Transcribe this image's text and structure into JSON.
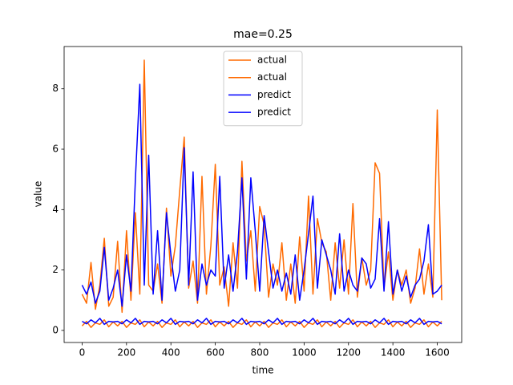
{
  "chart_data": {
    "type": "line",
    "title": "mae=0.25",
    "x_label": "time",
    "y_label": "value",
    "x": [
      0,
      20,
      40,
      60,
      80,
      100,
      120,
      140,
      160,
      180,
      200,
      220,
      240,
      260,
      280,
      300,
      320,
      340,
      360,
      380,
      400,
      420,
      440,
      460,
      480,
      500,
      520,
      540,
      560,
      580,
      600,
      620,
      640,
      660,
      680,
      700,
      720,
      740,
      760,
      780,
      800,
      820,
      840,
      860,
      880,
      900,
      920,
      940,
      960,
      980,
      1000,
      1020,
      1040,
      1060,
      1080,
      1100,
      1120,
      1140,
      1160,
      1180,
      1200,
      1220,
      1240,
      1260,
      1280,
      1300,
      1320,
      1340,
      1360,
      1380,
      1400,
      1420,
      1440,
      1460,
      1480,
      1500,
      1520,
      1540,
      1560,
      1580,
      1600,
      1620
    ],
    "series": [
      {
        "name": "actual",
        "color": "#ff6a00",
        "values": [
          1.2,
          0.9,
          2.25,
          0.7,
          1.5,
          3.05,
          0.8,
          1.1,
          2.95,
          0.6,
          3.3,
          1.0,
          3.9,
          1.2,
          8.95,
          1.5,
          1.3,
          2.2,
          0.9,
          4.05,
          1.8,
          2.8,
          4.65,
          6.4,
          1.4,
          2.3,
          0.9,
          5.1,
          1.2,
          2.8,
          5.5,
          1.5,
          2.1,
          0.8,
          2.9,
          1.4,
          5.6,
          2.3,
          3.3,
          1.3,
          4.1,
          3.5,
          1.1,
          2.2,
          1.5,
          2.9,
          1.0,
          2.2,
          0.9,
          3.1,
          1.3,
          4.45,
          1.2,
          3.7,
          2.9,
          2.6,
          1.0,
          2.9,
          1.4,
          3.0,
          1.2,
          4.2,
          1.1,
          2.4,
          1.5,
          2.0,
          5.55,
          5.2,
          1.4,
          2.6,
          1.0,
          2.0,
          1.5,
          2.0,
          0.9,
          1.4,
          2.7,
          1.2,
          2.2,
          1.1,
          7.3,
          1.0
        ]
      },
      {
        "name": "actual",
        "color": "#ff6a00",
        "values": [
          0.15,
          0.3,
          0.1,
          0.25,
          0.2,
          0.35,
          0.12,
          0.28,
          0.15,
          0.3,
          0.1,
          0.25,
          0.2,
          0.35,
          0.12,
          0.28,
          0.15,
          0.3,
          0.1,
          0.25,
          0.2,
          0.35,
          0.12,
          0.28,
          0.15,
          0.3,
          0.1,
          0.25,
          0.2,
          0.35,
          0.12,
          0.28,
          0.15,
          0.3,
          0.1,
          0.25,
          0.2,
          0.35,
          0.12,
          0.28,
          0.15,
          0.3,
          0.1,
          0.25,
          0.2,
          0.35,
          0.12,
          0.28,
          0.15,
          0.3,
          0.1,
          0.25,
          0.2,
          0.35,
          0.12,
          0.28,
          0.15,
          0.3,
          0.1,
          0.25,
          0.2,
          0.35,
          0.12,
          0.28,
          0.15,
          0.3,
          0.1,
          0.25,
          0.2,
          0.35,
          0.12,
          0.28,
          0.15,
          0.3,
          0.1,
          0.25,
          0.2,
          0.35,
          0.12,
          0.28,
          0.15,
          0.3
        ]
      },
      {
        "name": "predict",
        "color": "#0000ff",
        "values": [
          1.5,
          1.2,
          1.6,
          0.9,
          1.3,
          2.75,
          1.0,
          1.4,
          2.0,
          0.8,
          2.5,
          1.3,
          5.0,
          8.15,
          1.5,
          5.8,
          1.2,
          3.3,
          1.0,
          3.9,
          2.5,
          1.3,
          2.0,
          6.05,
          1.5,
          5.25,
          1.0,
          2.2,
          1.5,
          2.0,
          1.8,
          5.1,
          1.4,
          2.5,
          1.3,
          2.6,
          5.05,
          1.7,
          5.05,
          3.3,
          1.3,
          3.8,
          2.6,
          1.4,
          2.0,
          1.3,
          1.9,
          1.2,
          2.5,
          1.0,
          2.0,
          3.2,
          4.45,
          1.4,
          3.0,
          2.5,
          2.0,
          1.2,
          3.2,
          1.3,
          2.0,
          1.5,
          1.3,
          2.4,
          2.2,
          1.4,
          1.7,
          3.7,
          1.3,
          3.6,
          1.2,
          2.0,
          1.3,
          1.8,
          1.1,
          1.5,
          1.7,
          2.3,
          3.5,
          1.2,
          1.3,
          1.5
        ]
      },
      {
        "name": "predict",
        "color": "#0000ff",
        "values": [
          0.3,
          0.22,
          0.35,
          0.25,
          0.4,
          0.2,
          0.3,
          0.28,
          0.3,
          0.22,
          0.35,
          0.25,
          0.4,
          0.2,
          0.3,
          0.28,
          0.3,
          0.22,
          0.35,
          0.25,
          0.4,
          0.2,
          0.3,
          0.28,
          0.3,
          0.22,
          0.35,
          0.25,
          0.4,
          0.2,
          0.3,
          0.28,
          0.3,
          0.22,
          0.35,
          0.25,
          0.4,
          0.2,
          0.3,
          0.28,
          0.3,
          0.22,
          0.35,
          0.25,
          0.4,
          0.2,
          0.3,
          0.28,
          0.3,
          0.22,
          0.35,
          0.25,
          0.4,
          0.2,
          0.3,
          0.28,
          0.3,
          0.22,
          0.35,
          0.25,
          0.4,
          0.2,
          0.3,
          0.28,
          0.3,
          0.22,
          0.35,
          0.25,
          0.4,
          0.2,
          0.3,
          0.28,
          0.3,
          0.22,
          0.35,
          0.25,
          0.4,
          0.2,
          0.3,
          0.28,
          0.3,
          0.22
        ]
      }
    ],
    "xlim": [
      -81,
      1710
    ],
    "ylim": [
      -0.4,
      9.4
    ],
    "xticks": [
      0,
      200,
      400,
      600,
      800,
      1000,
      1200,
      1400,
      1600
    ],
    "yticks": [
      0,
      2,
      4,
      6,
      8
    ],
    "legend": "upper center"
  }
}
